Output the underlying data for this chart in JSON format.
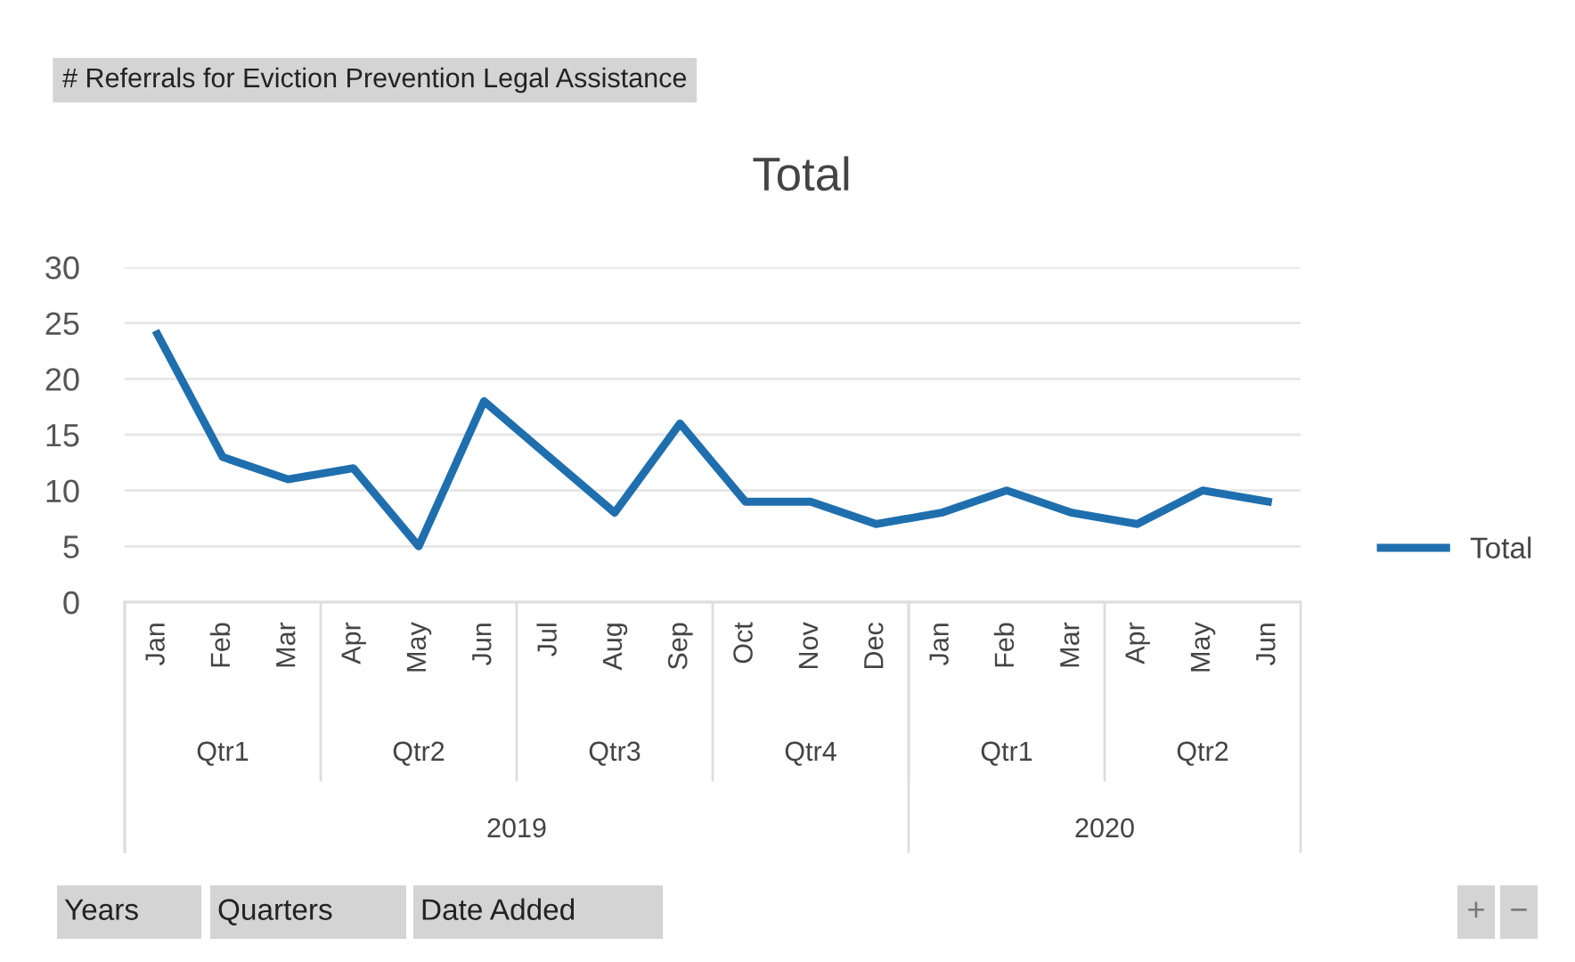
{
  "chart_data": {
    "type": "line",
    "title": "# Referrals for Eviction Prevention Legal Assistance",
    "subtitle": "Total",
    "categories": [
      "Jan",
      "Feb",
      "Mar",
      "Apr",
      "May",
      "Jun",
      "Jul",
      "Aug",
      "Sep",
      "Oct",
      "Nov",
      "Dec",
      "Jan",
      "Feb",
      "Mar",
      "Apr",
      "May",
      "Jun"
    ],
    "series": [
      {
        "name": "Total",
        "color": "#1f6fae",
        "values": [
          24,
          13,
          11,
          12,
          5,
          18,
          13,
          8,
          16,
          9,
          9,
          7,
          8,
          10,
          8,
          7,
          10,
          9
        ]
      }
    ],
    "annotations": [
      "Qtr1",
      "Qtr2",
      "Qtr3",
      "Qtr4",
      "Qtr1",
      "Qtr2",
      "2019",
      "2020",
      "Years",
      "Quarters",
      "Date Added",
      "+",
      "−"
    ],
    "ylim": [
      0,
      30
    ],
    "yticks": [
      0,
      5,
      10,
      15,
      20,
      25,
      30
    ],
    "grid": "y",
    "legend": "right",
    "marker": "none",
    "line_style": "solid"
  }
}
